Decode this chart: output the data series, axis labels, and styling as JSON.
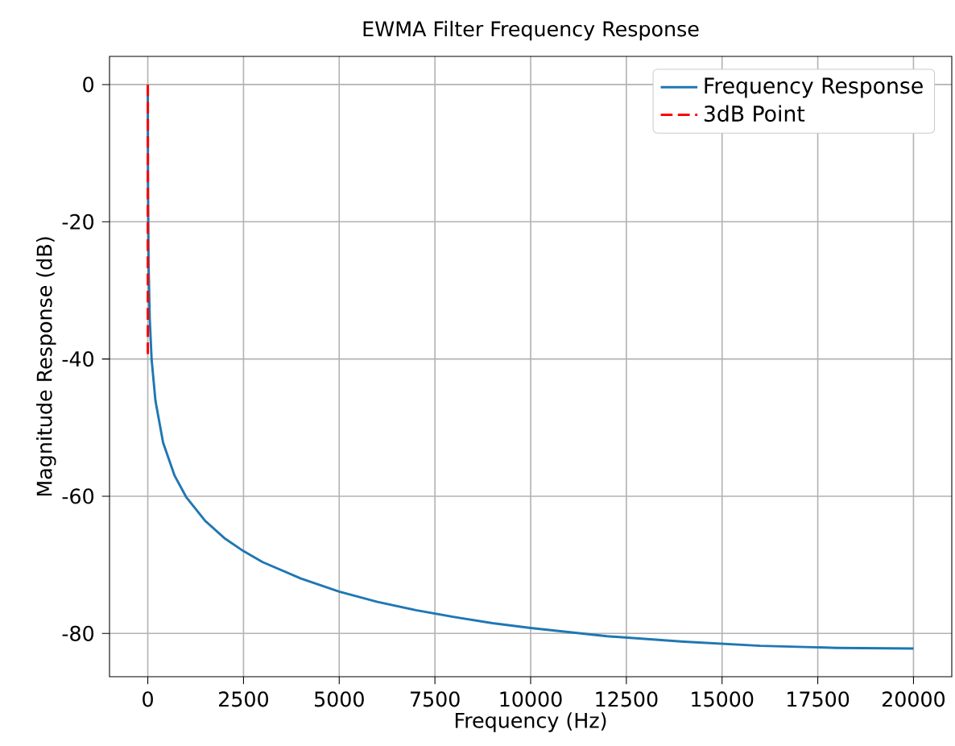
{
  "chart_data": {
    "type": "line",
    "title": "EWMA Filter Frequency Response",
    "xlabel": "Frequency (Hz)",
    "ylabel": "Magnitude Response (dB)",
    "xlim": [
      -1000,
      21000
    ],
    "ylim": [
      -86.3,
      4.1
    ],
    "xticks": [
      0,
      2500,
      5000,
      7500,
      10000,
      12500,
      15000,
      17500,
      20000
    ],
    "yticks": [
      -80,
      -60,
      -40,
      -20,
      0
    ],
    "grid": true,
    "legend": "top right",
    "series": [
      {
        "name": "Frequency Response",
        "color": "#1f77b4",
        "line_style": "solid",
        "x": [
          0,
          5,
          20,
          50,
          100,
          200,
          400,
          700,
          1000,
          1500,
          2000,
          2500,
          3000,
          4000,
          5000,
          6000,
          7000,
          8000,
          9000,
          10000,
          12000,
          14000,
          16000,
          18000,
          20000
        ],
        "values": [
          0,
          -14.3,
          -26.1,
          -34.1,
          -40.1,
          -46.1,
          -52.2,
          -57.0,
          -60.1,
          -63.6,
          -66.1,
          -68.0,
          -69.6,
          -72.0,
          -73.9,
          -75.4,
          -76.6,
          -77.6,
          -78.5,
          -79.2,
          -80.4,
          -81.2,
          -81.8,
          -82.1,
          -82.2
        ]
      },
      {
        "name": "3dB Point",
        "color": "#ff0000",
        "line_style": "dashed",
        "x": [
          1,
          1
        ],
        "values": [
          0,
          -40
        ]
      }
    ]
  }
}
